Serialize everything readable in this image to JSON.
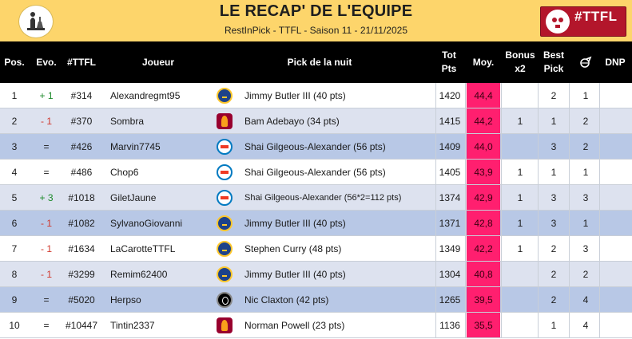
{
  "header": {
    "title": "LE RECAP' DE L'EQUIPE",
    "subtitle": "RestInPick - TTFL - Saison 11 - 21/11/2025",
    "logo_right_text": "#TTFL"
  },
  "columns": {
    "pos": "Pos.",
    "evo": "Evo.",
    "ttfl": "#TTFL",
    "player": "Joueur",
    "pick": "Pick de la nuit",
    "tot_line1": "Tot",
    "tot_line2": "Pts",
    "moy": "Moy.",
    "bonus_line1": "Bonus",
    "bonus_line2": "x2",
    "best_line1": "Best",
    "best_line2": "Pick",
    "icon_col": "comeback-arrow-icon",
    "dnp": "DNP"
  },
  "colors": {
    "header_bg": "#fdd56b",
    "column_header_bg": "#000000",
    "moy_highlight": "#ff1f6f",
    "row_white": "#ffffff",
    "row_light": "#dde2ef",
    "row_mid": "#b8c8e6",
    "evo_up": "#1c8a2a",
    "evo_down": "#d0362b"
  },
  "rows": [
    {
      "pos": "1",
      "evo": "+ 1",
      "evo_dir": "up",
      "ttfl": "#314",
      "player": "Alexandregmt95",
      "team_icon": "warriors-logo-icon",
      "pick": "Jimmy Butler III (40 pts)",
      "tot": "1420",
      "moy": "44,4",
      "bonus": "",
      "best": "2",
      "icon_val": "1",
      "dnp": "",
      "shade": "w"
    },
    {
      "pos": "2",
      "evo": "- 1",
      "evo_dir": "down",
      "ttfl": "#370",
      "player": "Sombra",
      "team_icon": "heat-logo-icon",
      "pick": "Bam Adebayo (34 pts)",
      "tot": "1415",
      "moy": "44,2",
      "bonus": "1",
      "best": "1",
      "icon_val": "2",
      "dnp": "",
      "shade": "l"
    },
    {
      "pos": "3",
      "evo": "=",
      "evo_dir": "same",
      "ttfl": "#426",
      "player": "Marvin7745",
      "team_icon": "thunder-logo-icon",
      "pick": "Shai Gilgeous-Alexander (56 pts)",
      "tot": "1409",
      "moy": "44,0",
      "bonus": "",
      "best": "3",
      "icon_val": "2",
      "dnp": "",
      "shade": "m"
    },
    {
      "pos": "4",
      "evo": "=",
      "evo_dir": "same",
      "ttfl": "#486",
      "player": "Chop6",
      "team_icon": "thunder-logo-icon",
      "pick": "Shai Gilgeous-Alexander (56 pts)",
      "tot": "1405",
      "moy": "43,9",
      "bonus": "1",
      "best": "1",
      "icon_val": "1",
      "dnp": "",
      "shade": "w"
    },
    {
      "pos": "5",
      "evo": "+ 3",
      "evo_dir": "up",
      "ttfl": "#1018",
      "player": "GiletJaune",
      "team_icon": "thunder-logo-icon",
      "pick": "Shai Gilgeous-Alexander (56*2=112 pts)",
      "tot": "1374",
      "moy": "42,9",
      "bonus": "1",
      "best": "3",
      "icon_val": "3",
      "dnp": "",
      "shade": "l",
      "small": true
    },
    {
      "pos": "6",
      "evo": "- 1",
      "evo_dir": "down",
      "ttfl": "#1082",
      "player": "SylvanoGiovanni",
      "team_icon": "warriors-logo-icon",
      "pick": "Jimmy Butler III (40 pts)",
      "tot": "1371",
      "moy": "42,8",
      "bonus": "1",
      "best": "3",
      "icon_val": "1",
      "dnp": "",
      "shade": "m"
    },
    {
      "pos": "7",
      "evo": "- 1",
      "evo_dir": "down",
      "ttfl": "#1634",
      "player": "LaCarotteTTFL",
      "team_icon": "warriors-logo-icon",
      "pick": "Stephen Curry (48 pts)",
      "tot": "1349",
      "moy": "42,2",
      "bonus": "1",
      "best": "2",
      "icon_val": "3",
      "dnp": "",
      "shade": "w"
    },
    {
      "pos": "8",
      "evo": "- 1",
      "evo_dir": "down",
      "ttfl": "#3299",
      "player": "Remim62400",
      "team_icon": "warriors-logo-icon",
      "pick": "Jimmy Butler III (40 pts)",
      "tot": "1304",
      "moy": "40,8",
      "bonus": "",
      "best": "2",
      "icon_val": "2",
      "dnp": "",
      "shade": "l"
    },
    {
      "pos": "9",
      "evo": "=",
      "evo_dir": "same",
      "ttfl": "#5020",
      "player": "Herpso",
      "team_icon": "nets-logo-icon",
      "pick": "Nic Claxton (42 pts)",
      "tot": "1265",
      "moy": "39,5",
      "bonus": "",
      "best": "2",
      "icon_val": "4",
      "dnp": "",
      "shade": "m"
    },
    {
      "pos": "10",
      "evo": "=",
      "evo_dir": "same",
      "ttfl": "#10447",
      "player": "Tintin2337",
      "team_icon": "heat-logo-icon",
      "pick": "Norman Powell (23 pts)",
      "tot": "1136",
      "moy": "35,5",
      "bonus": "",
      "best": "1",
      "icon_val": "4",
      "dnp": "",
      "shade": "w"
    }
  ]
}
